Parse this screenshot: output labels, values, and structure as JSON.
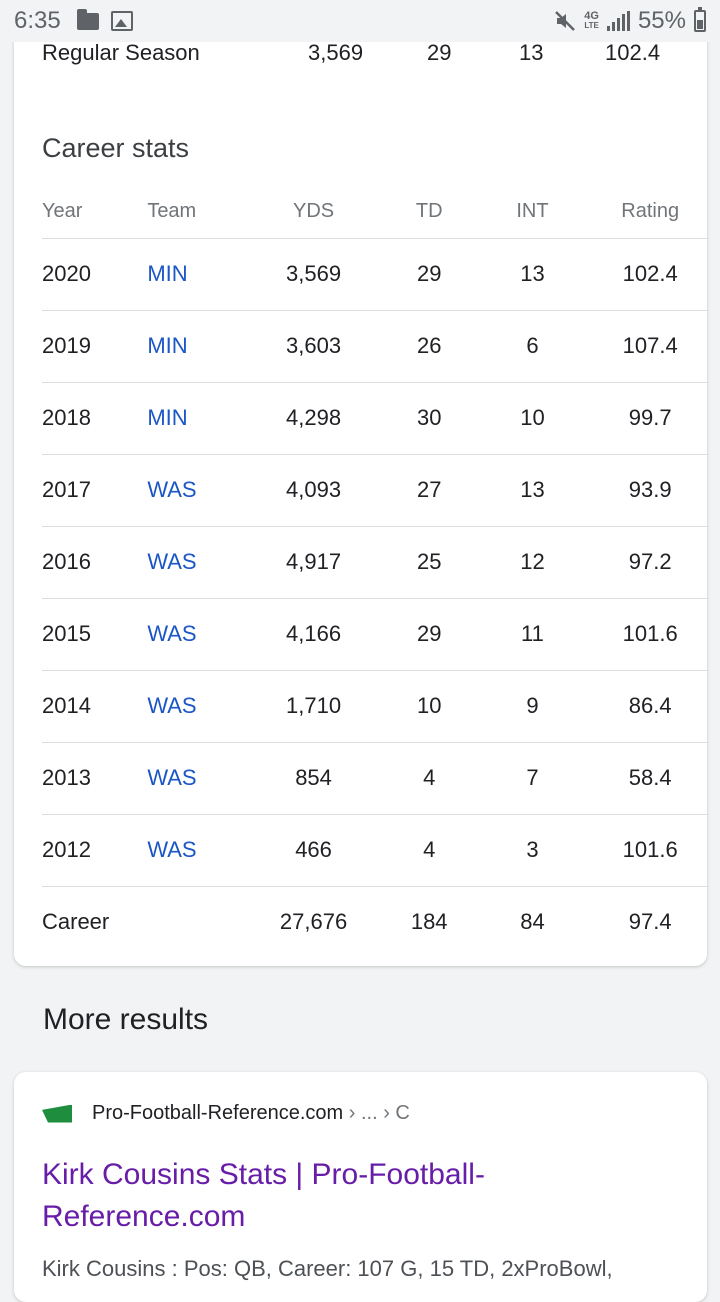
{
  "status_bar": {
    "time": "6:35",
    "network": "4G",
    "network_sub": "LTE",
    "battery": "55%"
  },
  "regular_season": {
    "label": "Regular Season",
    "yds": "3,569",
    "td": "29",
    "int": "13",
    "rating": "102.4"
  },
  "career_stats": {
    "title": "Career stats",
    "headers": {
      "year": "Year",
      "team": "Team",
      "yds": "YDS",
      "td": "TD",
      "int": "INT",
      "rating": "Rating"
    },
    "rows": [
      {
        "year": "2020",
        "team": "MIN",
        "yds": "3,569",
        "td": "29",
        "int": "13",
        "rating": "102.4"
      },
      {
        "year": "2019",
        "team": "MIN",
        "yds": "3,603",
        "td": "26",
        "int": "6",
        "rating": "107.4"
      },
      {
        "year": "2018",
        "team": "MIN",
        "yds": "4,298",
        "td": "30",
        "int": "10",
        "rating": "99.7"
      },
      {
        "year": "2017",
        "team": "WAS",
        "yds": "4,093",
        "td": "27",
        "int": "13",
        "rating": "93.9"
      },
      {
        "year": "2016",
        "team": "WAS",
        "yds": "4,917",
        "td": "25",
        "int": "12",
        "rating": "97.2"
      },
      {
        "year": "2015",
        "team": "WAS",
        "yds": "4,166",
        "td": "29",
        "int": "11",
        "rating": "101.6"
      },
      {
        "year": "2014",
        "team": "WAS",
        "yds": "1,710",
        "td": "10",
        "int": "9",
        "rating": "86.4"
      },
      {
        "year": "2013",
        "team": "WAS",
        "yds": "854",
        "td": "4",
        "int": "7",
        "rating": "58.4"
      },
      {
        "year": "2012",
        "team": "WAS",
        "yds": "466",
        "td": "4",
        "int": "3",
        "rating": "101.6"
      }
    ],
    "career": {
      "label": "Career",
      "yds": "27,676",
      "td": "184",
      "int": "84",
      "rating": "97.4"
    }
  },
  "more_results": {
    "title": "More results",
    "result": {
      "source": "Pro-Football-Reference.com",
      "path": " › ... › C",
      "title": "Kirk Cousins Stats | Pro-Football-Reference.com",
      "snippet": "Kirk Cousins : Pos: QB, Career: 107 G, 15 TD, 2xProBowl,"
    }
  },
  "colors": {
    "link_blue": "#1a56c7",
    "visited_purple": "#681da8",
    "brand_green": "#1e8e3e"
  }
}
